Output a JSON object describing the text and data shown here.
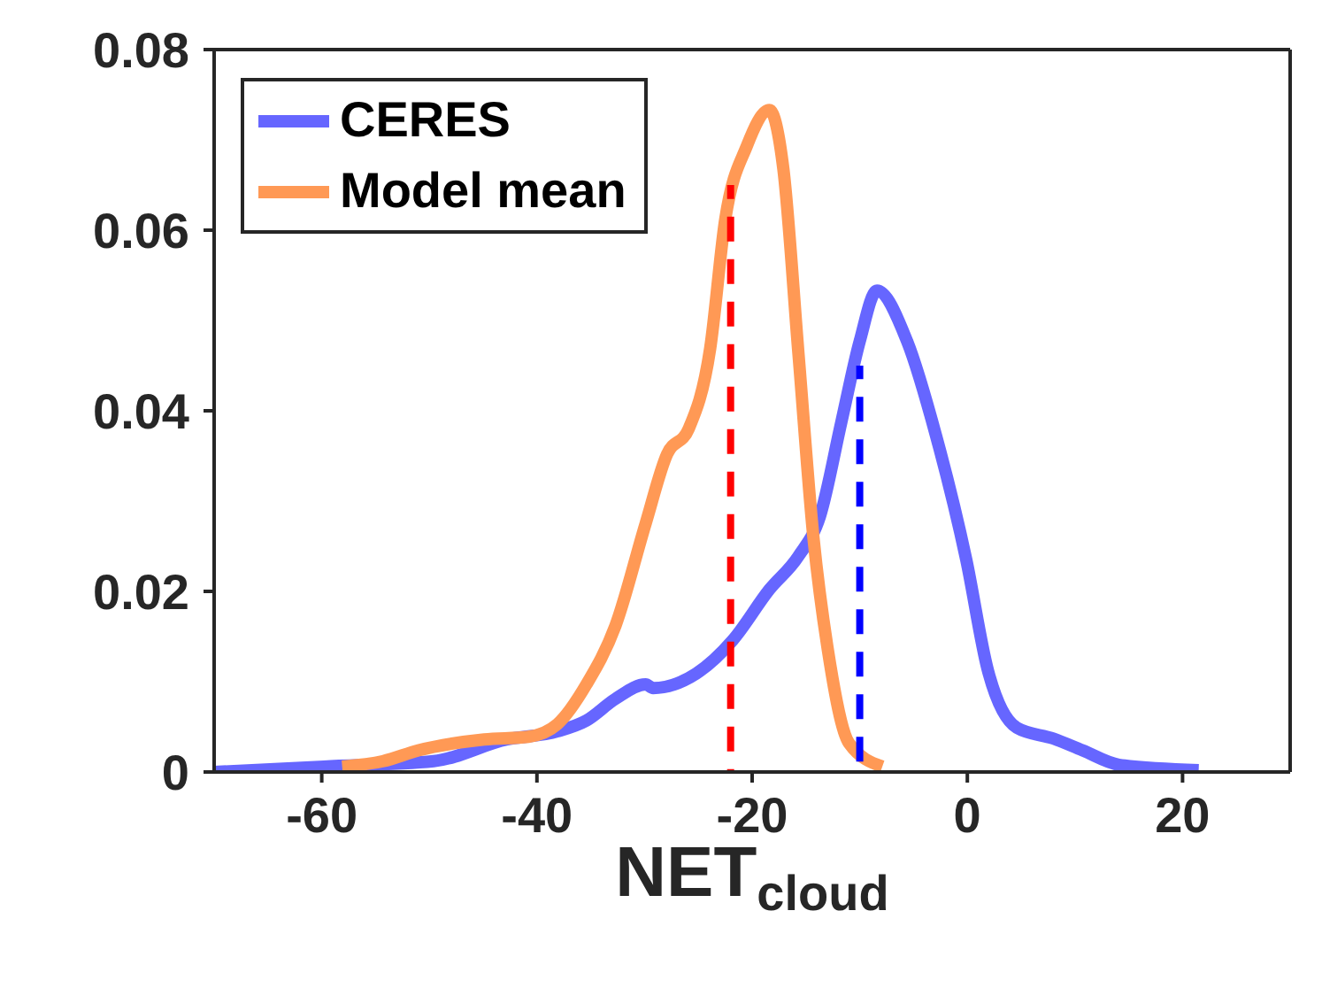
{
  "chart_data": {
    "type": "line",
    "xlabel": "NET$_{cloud}$",
    "xlim": [
      -70,
      30
    ],
    "xticks": [
      -60,
      -40,
      -20,
      0,
      20
    ],
    "ylim": [
      0,
      0.08
    ],
    "yticks": [
      0,
      0.02,
      0.04,
      0.06,
      0.08
    ],
    "legend": "top left",
    "grid": false,
    "series": [
      {
        "name": "CERES",
        "color": "#6666ff",
        "x": [
          -70,
          -59.8,
          -49.6,
          -42.8,
          -38.1,
          -35.4,
          -32.7,
          -29.9,
          -29.2,
          -25.2,
          -21.8,
          -18.4,
          -15.7,
          -13.7,
          -11.7,
          -10,
          -8.4,
          -5.6,
          -2.9,
          -0.1,
          1.9,
          4.6,
          8,
          10.7,
          14.1,
          21.5
        ],
        "values": [
          0,
          0.0006,
          0.0012,
          0.0036,
          0.0045,
          0.0057,
          0.0081,
          0.0097,
          0.0093,
          0.0109,
          0.0146,
          0.0202,
          0.0239,
          0.0283,
          0.0388,
          0.0477,
          0.0533,
          0.0477,
          0.0372,
          0.0235,
          0.0113,
          0.0049,
          0.0037,
          0.0024,
          0.0008,
          0.0002
        ]
      },
      {
        "name": "Model mean",
        "color": "#ff9955",
        "x": [
          -58.1,
          -54.3,
          -51,
          -44.9,
          -40.8,
          -38.1,
          -35.4,
          -32.7,
          -29.9,
          -27.9,
          -25.9,
          -23.9,
          -22.5,
          -20.5,
          -18.4,
          -17.1,
          -15.7,
          -14.3,
          -13,
          -11,
          -7.9
        ],
        "values": [
          0.0006,
          0.0012,
          0.0024,
          0.0036,
          0.0039,
          0.0053,
          0.0097,
          0.0162,
          0.0275,
          0.0352,
          0.038,
          0.0469,
          0.0612,
          0.0693,
          0.0733,
          0.0668,
          0.0464,
          0.0259,
          0.0138,
          0.0032,
          0.0006
        ]
      },
      {
        "type": "line",
        "line_style": "dashed",
        "color": "#ff0000",
        "x": [
          -22,
          -22
        ],
        "values": [
          0,
          0.065
        ]
      },
      {
        "type": "line",
        "line_style": "dashed",
        "color": "#0000ff",
        "x": [
          -10,
          -10
        ],
        "values": [
          0,
          0.045
        ]
      }
    ]
  }
}
